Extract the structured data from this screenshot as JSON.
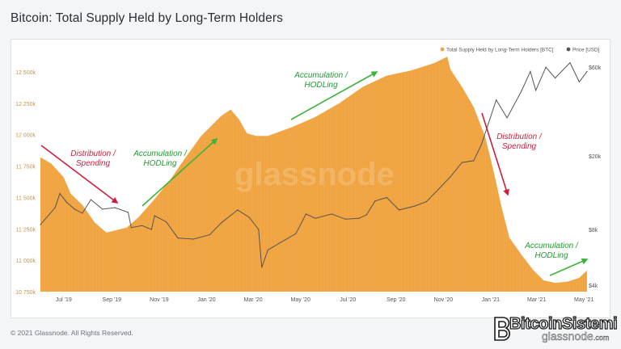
{
  "chart_data": {
    "type": "area",
    "title": "Bitcoin: Total Supply Held by Long-Term Holders",
    "legend_placement": "top-right",
    "grid": false,
    "watermark": "glassnode",
    "x_ticks": [
      "Jul '19",
      "Sep '19",
      "Nov '19",
      "Jan '20",
      "Mar '20",
      "May '20",
      "Jul '20",
      "Sep '20",
      "Nov '20",
      "Jan '21",
      "Mar '21",
      "May '21"
    ],
    "x_range": [
      "2019-06-01",
      "2021-05-05"
    ],
    "series": [
      {
        "name": "Total Supply Held by Long-Term Holders [BTC]",
        "color": "#f0a33e",
        "axis": "left",
        "ylim": [
          10750000,
          12680000
        ],
        "y_ticks": [
          "12 500k",
          "12 250k",
          "12 000k",
          "11 750k",
          "11 500k",
          "11 250k",
          "11 000k",
          "10 750k"
        ],
        "points": [
          [
            "2019-06-01",
            11820000
          ],
          [
            "2019-06-15",
            11770000
          ],
          [
            "2019-07-01",
            11660000
          ],
          [
            "2019-07-10",
            11530000
          ],
          [
            "2019-07-25",
            11440000
          ],
          [
            "2019-08-10",
            11300000
          ],
          [
            "2019-08-25",
            11220000
          ],
          [
            "2019-09-20",
            11260000
          ],
          [
            "2019-10-05",
            11340000
          ],
          [
            "2019-10-25",
            11480000
          ],
          [
            "2019-11-15",
            11640000
          ],
          [
            "2019-12-05",
            11820000
          ],
          [
            "2019-12-25",
            11990000
          ],
          [
            "2020-01-20",
            12150000
          ],
          [
            "2020-02-01",
            12200000
          ],
          [
            "2020-02-12",
            12120000
          ],
          [
            "2020-02-22",
            12010000
          ],
          [
            "2020-03-05",
            11990000
          ],
          [
            "2020-03-20",
            11990000
          ],
          [
            "2020-04-20",
            12060000
          ],
          [
            "2020-05-20",
            12140000
          ],
          [
            "2020-06-20",
            12250000
          ],
          [
            "2020-07-20",
            12380000
          ],
          [
            "2020-08-20",
            12470000
          ],
          [
            "2020-09-20",
            12510000
          ],
          [
            "2020-10-20",
            12570000
          ],
          [
            "2020-11-06",
            12620000
          ],
          [
            "2020-11-10",
            12520000
          ],
          [
            "2020-11-25",
            12380000
          ],
          [
            "2020-12-10",
            12220000
          ],
          [
            "2020-12-25",
            11980000
          ],
          [
            "2021-01-05",
            11700000
          ],
          [
            "2021-01-15",
            11420000
          ],
          [
            "2021-01-25",
            11180000
          ],
          [
            "2021-02-10",
            11040000
          ],
          [
            "2021-02-25",
            10920000
          ],
          [
            "2021-03-10",
            10840000
          ],
          [
            "2021-03-25",
            10820000
          ],
          [
            "2021-04-10",
            10830000
          ],
          [
            "2021-04-25",
            10860000
          ],
          [
            "2021-05-05",
            10920000
          ]
        ]
      },
      {
        "name": "Price [USD]",
        "color": "#555555",
        "axis": "right",
        "scale": "log",
        "ylim": [
          3700,
          75000
        ],
        "y_ticks": [
          "$60k",
          "$20k",
          "$8k",
          "$4k"
        ],
        "points": [
          [
            "2019-06-01",
            8500
          ],
          [
            "2019-06-20",
            10500
          ],
          [
            "2019-06-26",
            12500
          ],
          [
            "2019-07-05",
            11200
          ],
          [
            "2019-07-15",
            10300
          ],
          [
            "2019-07-25",
            9800
          ],
          [
            "2019-08-05",
            11600
          ],
          [
            "2019-08-20",
            10300
          ],
          [
            "2019-09-05",
            10500
          ],
          [
            "2019-09-22",
            9900
          ],
          [
            "2019-09-26",
            8200
          ],
          [
            "2019-10-10",
            8400
          ],
          [
            "2019-10-22",
            8000
          ],
          [
            "2019-10-26",
            9500
          ],
          [
            "2019-11-10",
            8800
          ],
          [
            "2019-11-25",
            7200
          ],
          [
            "2019-12-15",
            7100
          ],
          [
            "2020-01-05",
            7500
          ],
          [
            "2020-01-20",
            8700
          ],
          [
            "2020-02-10",
            10200
          ],
          [
            "2020-02-25",
            9300
          ],
          [
            "2020-03-08",
            8000
          ],
          [
            "2020-03-12",
            5000
          ],
          [
            "2020-03-20",
            6200
          ],
          [
            "2020-04-05",
            6800
          ],
          [
            "2020-04-25",
            7600
          ],
          [
            "2020-05-08",
            9700
          ],
          [
            "2020-05-20",
            9200
          ],
          [
            "2020-06-10",
            9700
          ],
          [
            "2020-06-28",
            9100
          ],
          [
            "2020-07-15",
            9200
          ],
          [
            "2020-07-25",
            9600
          ],
          [
            "2020-08-05",
            11400
          ],
          [
            "2020-08-20",
            11900
          ],
          [
            "2020-09-05",
            10200
          ],
          [
            "2020-09-25",
            10700
          ],
          [
            "2020-10-10",
            11300
          ],
          [
            "2020-10-25",
            13100
          ],
          [
            "2020-11-10",
            15400
          ],
          [
            "2020-11-25",
            18400
          ],
          [
            "2020-12-10",
            18800
          ],
          [
            "2020-12-20",
            23000
          ],
          [
            "2021-01-08",
            40000
          ],
          [
            "2021-01-22",
            32000
          ],
          [
            "2021-02-10",
            45000
          ],
          [
            "2021-02-21",
            57000
          ],
          [
            "2021-02-28",
            45000
          ],
          [
            "2021-03-13",
            60000
          ],
          [
            "2021-03-25",
            52500
          ],
          [
            "2021-04-13",
            63500
          ],
          [
            "2021-04-25",
            50000
          ],
          [
            "2021-05-05",
            57000
          ]
        ]
      }
    ],
    "annotations": [
      {
        "text": "Distribution /\nSpending",
        "color": "#cc1f3c",
        "arrow_color": "#cc1f3c"
      },
      {
        "text": "Accumulation /\nHODLing",
        "color": "#1f9a32",
        "arrow_color": "#3db33a"
      },
      {
        "text": "Accumulation /\nHODLing",
        "color": "#1f9a32",
        "arrow_color": "#3db33a"
      },
      {
        "text": "Distribution /\nSpending",
        "color": "#cc1f3c",
        "arrow_color": "#cc1f3c"
      },
      {
        "text": "Accumulation /\nHODLing",
        "color": "#1f9a32",
        "arrow_color": "#3db33a"
      }
    ]
  },
  "footer": {
    "copyright": "© 2021 Glassnode. All Rights Reserved."
  },
  "brand": {
    "name": "BitcoinSistemi",
    "sub": "glassnode",
    "suffix": ".com"
  }
}
